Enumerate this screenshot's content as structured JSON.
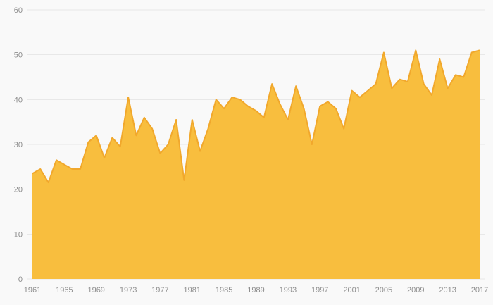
{
  "chart_data": {
    "type": "area",
    "title": "",
    "xlabel": "",
    "ylabel": "",
    "ylim": [
      0,
      60
    ],
    "grid": true,
    "legend": false,
    "x": [
      1961,
      1962,
      1963,
      1964,
      1965,
      1966,
      1967,
      1968,
      1969,
      1970,
      1971,
      1972,
      1973,
      1974,
      1975,
      1976,
      1977,
      1978,
      1979,
      1980,
      1981,
      1982,
      1983,
      1984,
      1985,
      1986,
      1987,
      1988,
      1989,
      1990,
      1991,
      1992,
      1993,
      1994,
      1995,
      1996,
      1997,
      1998,
      1999,
      2000,
      2001,
      2002,
      2003,
      2004,
      2005,
      2006,
      2007,
      2008,
      2009,
      2010,
      2011,
      2012,
      2013,
      2014,
      2015,
      2016,
      2017
    ],
    "values": [
      23.5,
      24.5,
      21.5,
      26.5,
      25.5,
      24.5,
      24.5,
      30.5,
      32,
      27,
      31.5,
      29.5,
      40.5,
      32,
      36,
      33.5,
      28,
      30,
      35.5,
      22,
      35.5,
      28.5,
      33.5,
      40,
      38,
      40.5,
      40,
      38.5,
      37.5,
      36,
      43.5,
      39,
      35.5,
      43,
      38,
      30,
      38.5,
      39.5,
      38,
      33.5,
      42,
      40.5,
      42,
      43.5,
      50.5,
      42.5,
      44.5,
      44,
      51,
      43.5,
      41,
      49,
      42.5,
      45.5,
      45,
      50.5,
      51
    ],
    "y_ticks": [
      0,
      10,
      20,
      30,
      40,
      50,
      60
    ],
    "x_ticks": [
      1961,
      1965,
      1969,
      1973,
      1977,
      1981,
      1985,
      1989,
      1993,
      1997,
      2001,
      2005,
      2009,
      2013,
      2017
    ],
    "colors": {
      "area_fill": "#F8BE3E",
      "area_stroke": "#F1A82C",
      "background": "#f9f9f9",
      "gridline": "#e8e8e8",
      "tick_label": "#8d8d8d"
    }
  }
}
